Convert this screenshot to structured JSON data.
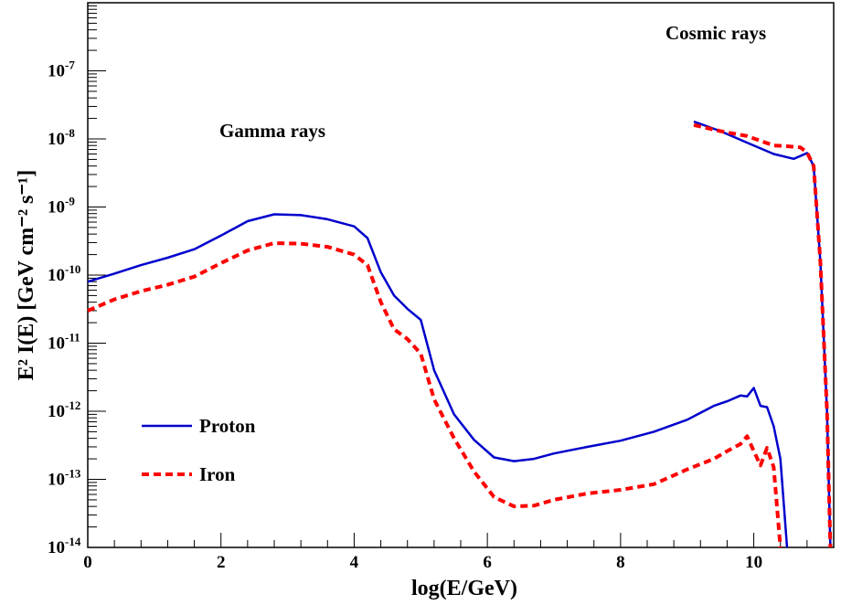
{
  "chart_data": {
    "type": "line",
    "xlabel": "log(E/GeV)",
    "ylabel": {
      "main": "E² I(E)  [GeV cm⁻² s⁻¹]"
    },
    "xlim": [
      0,
      11.2
    ],
    "ylim": [
      1e-14,
      1e-06
    ],
    "yscale": "log",
    "grid": false,
    "legend_position": "bottom-left",
    "x_ticks": [
      "0",
      "2",
      "4",
      "6",
      "8",
      "10"
    ],
    "y_ticks": [
      {
        "base": "10",
        "exp": "-14"
      },
      {
        "base": "10",
        "exp": "-13"
      },
      {
        "base": "10",
        "exp": "-12"
      },
      {
        "base": "10",
        "exp": "-11"
      },
      {
        "base": "10",
        "exp": "-10"
      },
      {
        "base": "10",
        "exp": "-9"
      },
      {
        "base": "10",
        "exp": "-8"
      },
      {
        "base": "10",
        "exp": "-7"
      }
    ],
    "annotations": [
      "Gamma rays",
      "Cosmic rays"
    ],
    "series": [
      {
        "name": "Proton",
        "color": "#0000cc",
        "dash": "solid",
        "gamma_rays": [
          [
            0,
            8e-11
          ],
          [
            0.4,
            1.05e-10
          ],
          [
            0.8,
            1.4e-10
          ],
          [
            1.2,
            1.8e-10
          ],
          [
            1.6,
            2.4e-10
          ],
          [
            2.0,
            3.8e-10
          ],
          [
            2.4,
            6.2e-10
          ],
          [
            2.8,
            7.8e-10
          ],
          [
            3.2,
            7.6e-10
          ],
          [
            3.6,
            6.6e-10
          ],
          [
            4.0,
            5.2e-10
          ],
          [
            4.2,
            3.5e-10
          ],
          [
            4.4,
            1.1e-10
          ],
          [
            4.6,
            5e-11
          ],
          [
            4.8,
            3.2e-11
          ],
          [
            5.0,
            2.2e-11
          ],
          [
            5.2,
            4e-12
          ],
          [
            5.5,
            9e-13
          ],
          [
            5.8,
            3.8e-13
          ],
          [
            6.1,
            2.1e-13
          ],
          [
            6.4,
            1.85e-13
          ],
          [
            6.7,
            2e-13
          ],
          [
            7.0,
            2.4e-13
          ],
          [
            7.5,
            3e-13
          ],
          [
            8.0,
            3.7e-13
          ],
          [
            8.5,
            5e-13
          ],
          [
            9.0,
            7.5e-13
          ],
          [
            9.4,
            1.2e-12
          ],
          [
            9.6,
            1.4e-12
          ],
          [
            9.8,
            1.7e-12
          ],
          [
            9.9,
            1.65e-12
          ],
          [
            10.0,
            2.2e-12
          ],
          [
            10.1,
            1.2e-12
          ],
          [
            10.2,
            1.15e-12
          ],
          [
            10.3,
            6e-13
          ],
          [
            10.4,
            2e-13
          ],
          [
            10.5,
            1e-14
          ]
        ],
        "cosmic_rays": [
          [
            9.1,
            1.8e-08
          ],
          [
            9.5,
            1.3e-08
          ],
          [
            9.9,
            8.8e-09
          ],
          [
            10.3,
            6e-09
          ],
          [
            10.6,
            5.1e-09
          ],
          [
            10.8,
            6.2e-09
          ],
          [
            10.9,
            4e-09
          ],
          [
            11.0,
            1.6e-10
          ],
          [
            11.1,
            1e-12
          ],
          [
            11.15,
            1e-14
          ]
        ]
      },
      {
        "name": "Iron",
        "color": "#ff0000",
        "dash": "dashed",
        "gamma_rays": [
          [
            0,
            3e-11
          ],
          [
            0.4,
            4.4e-11
          ],
          [
            0.8,
            5.8e-11
          ],
          [
            1.2,
            7.2e-11
          ],
          [
            1.6,
            9.5e-11
          ],
          [
            2.0,
            1.5e-10
          ],
          [
            2.4,
            2.3e-10
          ],
          [
            2.8,
            2.95e-10
          ],
          [
            3.2,
            2.9e-10
          ],
          [
            3.6,
            2.6e-10
          ],
          [
            4.0,
            2e-10
          ],
          [
            4.2,
            1.4e-10
          ],
          [
            4.4,
            4e-11
          ],
          [
            4.6,
            1.6e-11
          ],
          [
            4.8,
            1.15e-11
          ],
          [
            5.0,
            7e-12
          ],
          [
            5.2,
            1.5e-12
          ],
          [
            5.5,
            4e-13
          ],
          [
            5.8,
            1.3e-13
          ],
          [
            6.1,
            5.5e-14
          ],
          [
            6.4,
            4e-14
          ],
          [
            6.7,
            4.1e-14
          ],
          [
            7.0,
            5e-14
          ],
          [
            7.5,
            6.2e-14
          ],
          [
            8.0,
            7e-14
          ],
          [
            8.5,
            8.5e-14
          ],
          [
            9.0,
            1.4e-13
          ],
          [
            9.4,
            2e-13
          ],
          [
            9.6,
            2.6e-13
          ],
          [
            9.8,
            3.3e-13
          ],
          [
            9.9,
            4.3e-13
          ],
          [
            10.0,
            2.6e-13
          ],
          [
            10.1,
            1.6e-13
          ],
          [
            10.2,
            2.9e-13
          ],
          [
            10.3,
            1.5e-13
          ],
          [
            10.4,
            1e-14
          ]
        ],
        "cosmic_rays": [
          [
            9.1,
            1.6e-08
          ],
          [
            9.5,
            1.3e-08
          ],
          [
            9.9,
            1.1e-08
          ],
          [
            10.3,
            8e-09
          ],
          [
            10.5,
            7.8e-09
          ],
          [
            10.7,
            7.5e-09
          ],
          [
            10.8,
            6.3e-09
          ],
          [
            10.9,
            4e-09
          ],
          [
            11.0,
            1.6e-10
          ],
          [
            11.1,
            1e-12
          ],
          [
            11.15,
            1e-14
          ]
        ]
      }
    ]
  }
}
